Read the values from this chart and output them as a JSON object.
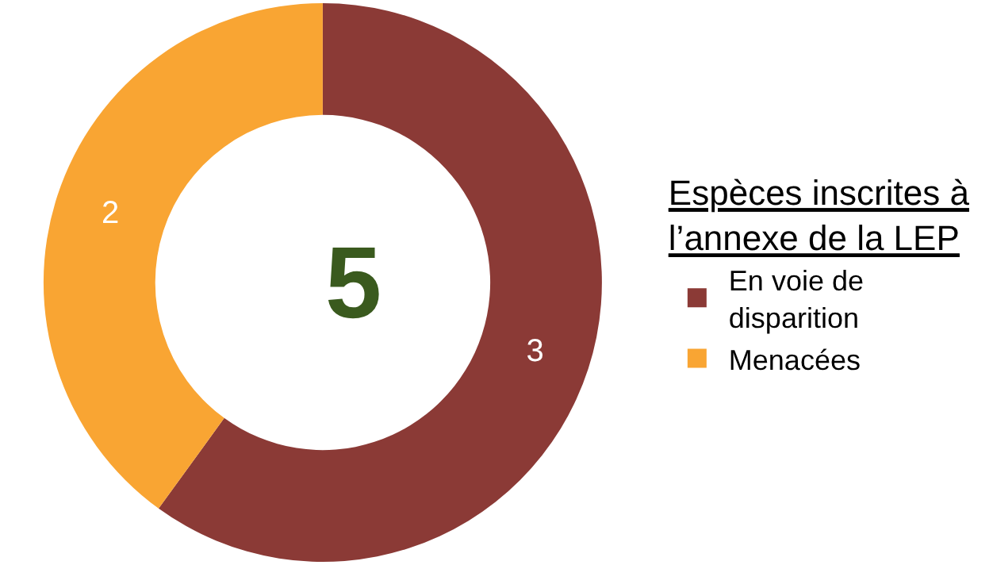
{
  "chart_data": {
    "type": "donut",
    "categories": [
      "En voie de disparition",
      "Menacées"
    ],
    "values": [
      3,
      2
    ],
    "colors": [
      "#8b3a36",
      "#f9a533"
    ],
    "legend_title": "Espèces inscrites à l’annexe de la LEP",
    "legend": "right",
    "data_labels": true,
    "annotations": [
      "5"
    ]
  }
}
